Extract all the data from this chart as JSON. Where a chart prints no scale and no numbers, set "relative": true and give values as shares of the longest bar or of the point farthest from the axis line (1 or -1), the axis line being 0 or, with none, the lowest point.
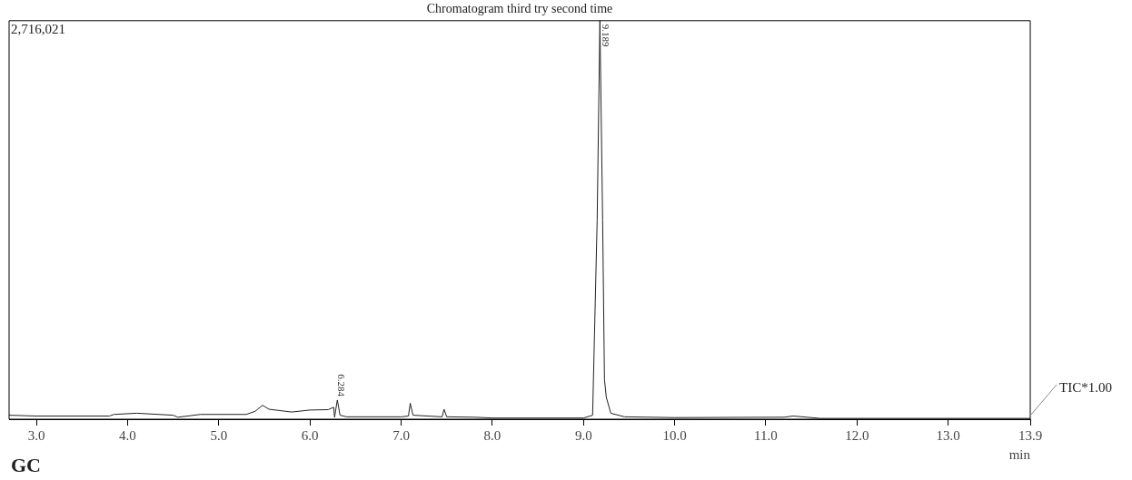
{
  "chart_data": {
    "type": "line",
    "title": "Chromatogram third try second time",
    "xlabel": "min",
    "relative": true,
    "grid": false,
    "legend": false,
    "marker": "none",
    "line_style": "solid",
    "xlim": [
      2.7,
      13.9
    ],
    "xticks": [
      {
        "value": 3,
        "label": "3.0"
      },
      {
        "value": 4,
        "label": "4.0"
      },
      {
        "value": 5,
        "label": "5.0"
      },
      {
        "value": 6,
        "label": "6.0"
      },
      {
        "value": 7,
        "label": "7.0"
      },
      {
        "value": 8,
        "label": "8.0"
      },
      {
        "value": 9,
        "label": "9.0"
      },
      {
        "value": 10,
        "label": "10.0"
      },
      {
        "value": 11,
        "label": "11.0"
      },
      {
        "value": 12,
        "label": "12.0"
      },
      {
        "value": 13,
        "label": "13.0"
      },
      13.9
    ],
    "series": [
      {
        "color": "#222222",
        "x": [
          2.7,
          3.0,
          3.8,
          3.85,
          4.1,
          4.5,
          4.55,
          4.8,
          5.3,
          5.4,
          5.48,
          5.55,
          5.8,
          6.0,
          6.2,
          6.26,
          6.27,
          6.3,
          6.33,
          6.4,
          7.0,
          7.08,
          7.1,
          7.13,
          7.45,
          7.47,
          7.5,
          7.8,
          8.0,
          9.0,
          9.1,
          9.15,
          9.18,
          9.21,
          9.23,
          9.25,
          9.3,
          9.45,
          10.0,
          11.2,
          11.3,
          11.5,
          11.6,
          13.9
        ],
        "values": [
          0.01,
          0.008,
          0.008,
          0.012,
          0.015,
          0.01,
          0.005,
          0.012,
          0.012,
          0.02,
          0.035,
          0.025,
          0.018,
          0.023,
          0.024,
          0.03,
          0.005,
          0.048,
          0.01,
          0.006,
          0.006,
          0.008,
          0.04,
          0.01,
          0.006,
          0.025,
          0.006,
          0.005,
          0.003,
          0.003,
          0.01,
          0.5,
          1.0,
          0.5,
          0.1,
          0.055,
          0.015,
          0.006,
          0.004,
          0.005,
          0.008,
          0.004,
          0.002,
          0.002
        ]
      }
    ],
    "annotations": [
      "2,716,021",
      {
        "text": "9.189",
        "x": 9.189,
        "y": 1
      },
      {
        "text": "6.284",
        "x": 6.284,
        "y": 0.048
      },
      "TIC*1.00",
      "GC"
    ]
  }
}
